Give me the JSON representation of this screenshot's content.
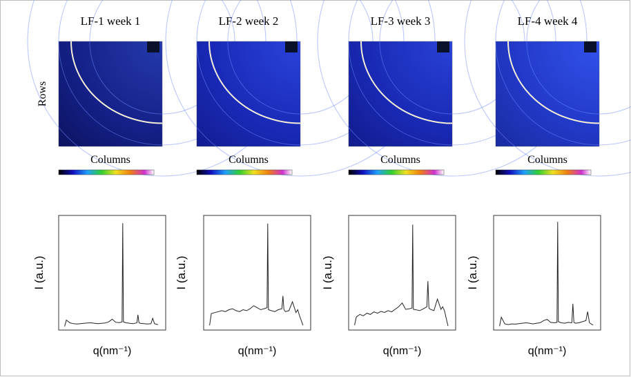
{
  "panels": [
    {
      "title": "LF-1 week 1",
      "row_label": "Rows",
      "column_label": "Columns"
    },
    {
      "title": "LF-2 week 2",
      "column_label": "Columns"
    },
    {
      "title": "LF-3 week 3",
      "column_label": "Columns"
    },
    {
      "title": "LF-4 week 4",
      "column_label": "Columns"
    }
  ],
  "chart_data": [
    {
      "type": "line",
      "x_label": "q(nm⁻¹)",
      "y_label": "I (a.u.)",
      "color": "#222222",
      "xlim": [
        0,
        28
      ],
      "ylim": [
        0,
        600
      ],
      "x": [
        0.5,
        1,
        2,
        3,
        4,
        5,
        6,
        7,
        8,
        9,
        10,
        11,
        12,
        13,
        14,
        15,
        16,
        16.8,
        17,
        17.2,
        18,
        19,
        20,
        21,
        21.3,
        21.6,
        22,
        23,
        24,
        25,
        25.5,
        26,
        27
      ],
      "values": [
        5,
        40,
        25,
        20,
        18,
        20,
        22,
        24,
        25,
        22,
        20,
        22,
        24,
        30,
        45,
        28,
        26,
        30,
        580,
        30,
        25,
        22,
        20,
        25,
        70,
        25,
        22,
        20,
        18,
        20,
        50,
        20,
        15
      ]
    },
    {
      "type": "line",
      "x_label": "q(nm⁻¹)",
      "y_label": "I (a.u.)",
      "color": "#222222",
      "xlim": [
        0,
        28
      ],
      "ylim": [
        0,
        550
      ],
      "x": [
        0.5,
        1,
        2,
        3,
        4,
        5,
        6,
        7,
        8,
        9,
        10,
        11,
        12,
        13,
        14,
        15,
        16,
        16.8,
        17,
        17.2,
        18,
        19,
        20,
        21,
        21.3,
        21.6,
        22,
        23,
        24,
        25,
        25.5,
        26,
        27
      ],
      "values": [
        10,
        70,
        75,
        80,
        85,
        80,
        90,
        95,
        85,
        80,
        90,
        85,
        95,
        110,
        100,
        90,
        95,
        100,
        530,
        90,
        85,
        80,
        90,
        95,
        160,
        90,
        80,
        85,
        130,
        75,
        90,
        60,
        10
      ]
    },
    {
      "type": "line",
      "x_label": "q(nm⁻¹)",
      "y_label": "I (a.u.)",
      "color": "#222222",
      "xlim": [
        0,
        28
      ],
      "ylim": [
        0,
        420
      ],
      "x": [
        0.5,
        1,
        2,
        3,
        4,
        5,
        6,
        7,
        8,
        9,
        10,
        11,
        12,
        13,
        14,
        15,
        16,
        16.8,
        17,
        17.2,
        18,
        19,
        20,
        21,
        21.3,
        21.6,
        22,
        23,
        24,
        25,
        25.5,
        26,
        27
      ],
      "values": [
        8,
        40,
        50,
        45,
        55,
        50,
        60,
        55,
        62,
        58,
        65,
        60,
        70,
        80,
        95,
        70,
        72,
        75,
        400,
        70,
        68,
        65,
        72,
        80,
        180,
        75,
        70,
        65,
        110,
        70,
        80,
        65,
        5
      ]
    },
    {
      "type": "line",
      "x_label": "q(nm⁻¹)",
      "y_label": "I (a.u.)",
      "color": "#222222",
      "xlim": [
        0,
        28
      ],
      "ylim": [
        0,
        480
      ],
      "x": [
        0.5,
        1,
        2,
        3,
        4,
        5,
        6,
        7,
        8,
        9,
        10,
        11,
        12,
        13,
        14,
        15,
        16,
        16.8,
        17,
        17.2,
        18,
        19,
        20,
        21,
        21.3,
        21.6,
        22,
        23,
        24,
        25,
        25.5,
        26,
        27
      ],
      "values": [
        5,
        45,
        15,
        12,
        15,
        14,
        16,
        18,
        20,
        18,
        15,
        18,
        20,
        30,
        35,
        22,
        20,
        22,
        470,
        25,
        20,
        18,
        22,
        20,
        105,
        22,
        18,
        20,
        25,
        30,
        70,
        20,
        10
      ]
    }
  ]
}
